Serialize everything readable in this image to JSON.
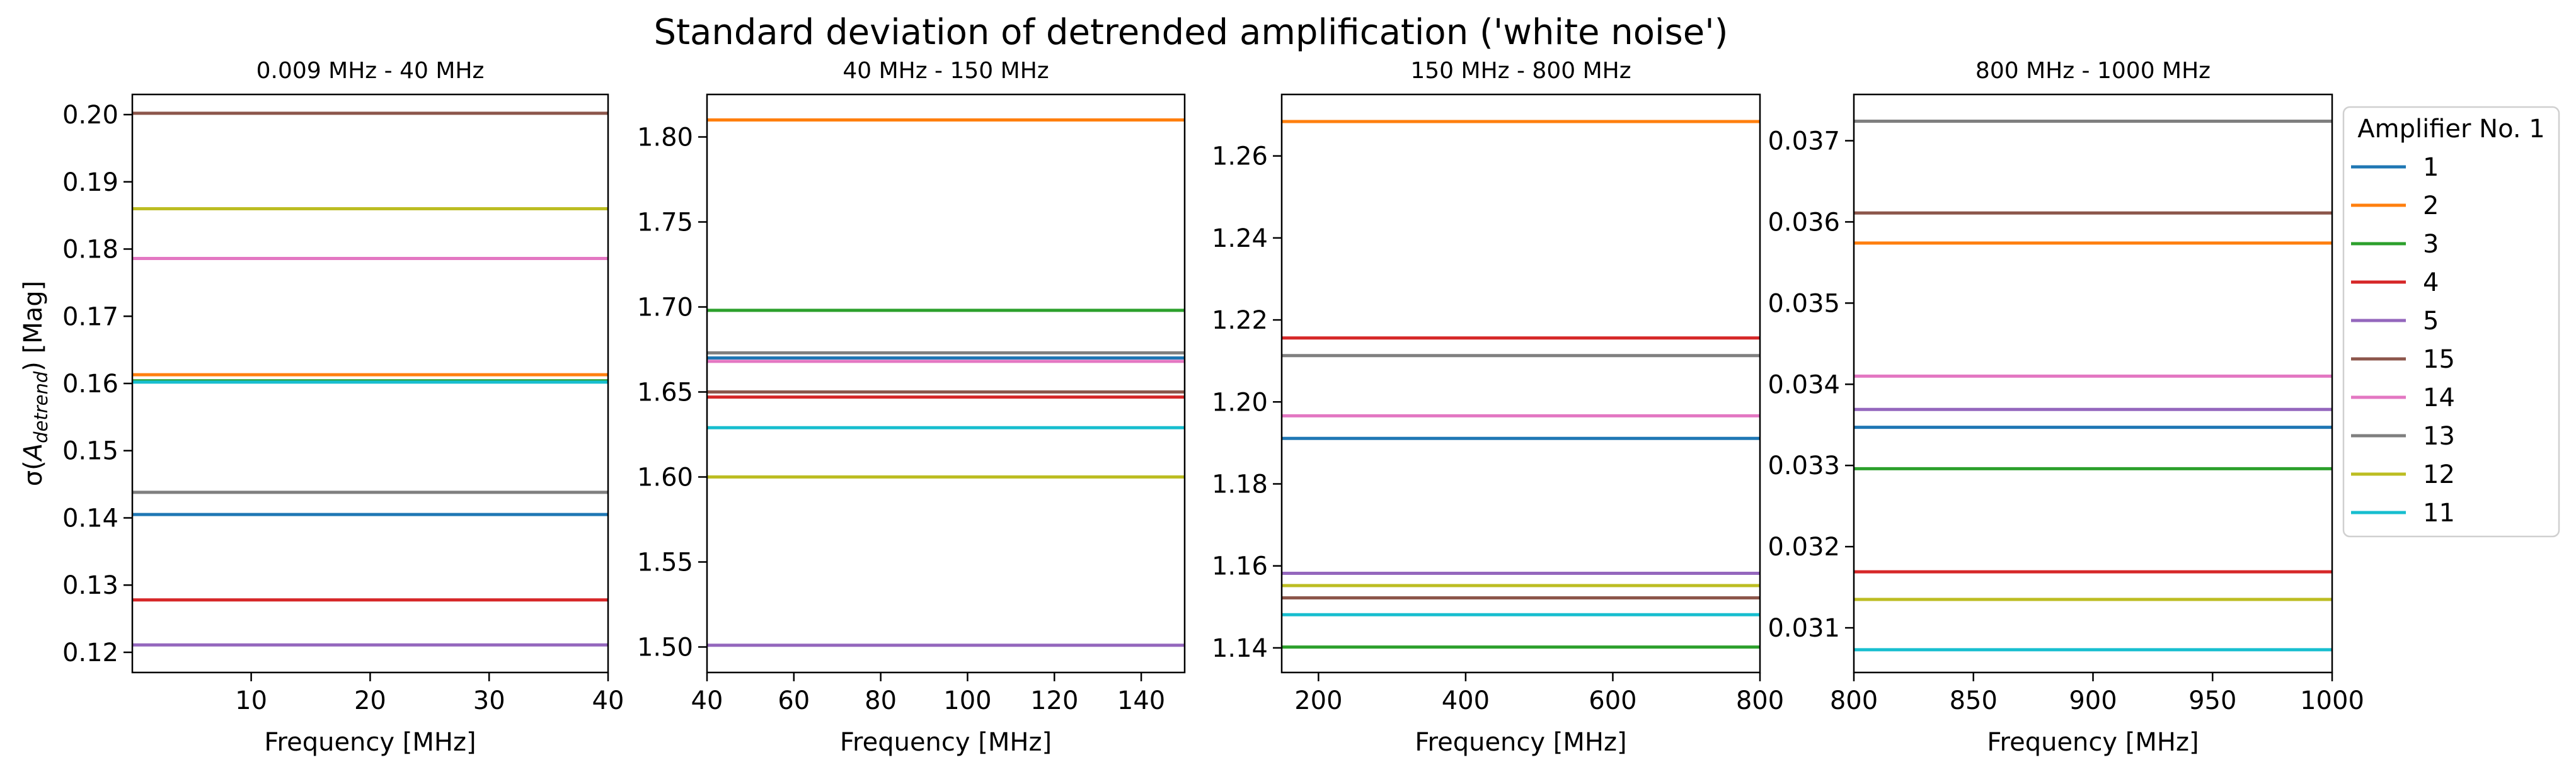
{
  "figure": {
    "title": "Standard deviation of detrended amplification ('white noise')",
    "ylabel": "σ(A_detrend) [Mag]"
  },
  "legend": {
    "title": "Amplifier No. 1",
    "placement": "right",
    "entries": [
      {
        "label": "1",
        "color": "#1f77b4"
      },
      {
        "label": "2",
        "color": "#ff7f0e"
      },
      {
        "label": "3",
        "color": "#2ca02c"
      },
      {
        "label": "4",
        "color": "#d62728"
      },
      {
        "label": "5",
        "color": "#9467bd"
      },
      {
        "label": "15",
        "color": "#8c564b"
      },
      {
        "label": "14",
        "color": "#e377c2"
      },
      {
        "label": "13",
        "color": "#7f7f7f"
      },
      {
        "label": "12",
        "color": "#bcbd22"
      },
      {
        "label": "11",
        "color": "#17becf"
      }
    ]
  },
  "chart_data": [
    {
      "type": "line",
      "title": "0.009 MHz - 40 MHz",
      "xlabel": "Frequency [MHz]",
      "ylabel": "σ(A_detrend) [Mag]",
      "xlim": [
        0.009,
        40
      ],
      "ylim": [
        0.117,
        0.203
      ],
      "xticks": [
        "10",
        "20",
        "30",
        "40"
      ],
      "xtick_values": [
        10,
        20,
        30,
        40
      ],
      "yticks": [
        "0.12",
        "0.13",
        "0.14",
        "0.15",
        "0.16",
        "0.17",
        "0.18",
        "0.19",
        "0.20"
      ],
      "ytick_values": [
        0.12,
        0.13,
        0.14,
        0.15,
        0.16,
        0.17,
        0.18,
        0.19,
        0.2
      ],
      "series": [
        {
          "name": "1",
          "values": [
            0.1405
          ]
        },
        {
          "name": "2",
          "values": [
            0.1613
          ]
        },
        {
          "name": "3",
          "values": [
            0.1604
          ]
        },
        {
          "name": "4",
          "values": [
            0.1278
          ]
        },
        {
          "name": "5",
          "values": [
            0.1211
          ]
        },
        {
          "name": "15",
          "values": [
            0.2002
          ]
        },
        {
          "name": "14",
          "values": [
            0.1786
          ]
        },
        {
          "name": "13",
          "values": [
            0.1438
          ]
        },
        {
          "name": "12",
          "values": [
            0.186
          ]
        },
        {
          "name": "11",
          "values": [
            0.1602
          ]
        }
      ]
    },
    {
      "type": "line",
      "title": "40 MHz - 150 MHz",
      "xlabel": "Frequency [MHz]",
      "xlim": [
        40,
        150
      ],
      "ylim": [
        1.485,
        1.825
      ],
      "xticks": [
        "40",
        "60",
        "80",
        "100",
        "120",
        "140"
      ],
      "xtick_values": [
        40,
        60,
        80,
        100,
        120,
        140
      ],
      "yticks": [
        "1.50",
        "1.55",
        "1.60",
        "1.65",
        "1.70",
        "1.75",
        "1.80"
      ],
      "ytick_values": [
        1.5,
        1.55,
        1.6,
        1.65,
        1.7,
        1.75,
        1.8
      ],
      "series": [
        {
          "name": "1",
          "values": [
            1.67
          ]
        },
        {
          "name": "2",
          "values": [
            1.81
          ]
        },
        {
          "name": "3",
          "values": [
            1.698
          ]
        },
        {
          "name": "4",
          "values": [
            1.647
          ]
        },
        {
          "name": "5",
          "values": [
            1.501
          ]
        },
        {
          "name": "15",
          "values": [
            1.65
          ]
        },
        {
          "name": "14",
          "values": [
            1.668
          ]
        },
        {
          "name": "13",
          "values": [
            1.673
          ]
        },
        {
          "name": "12",
          "values": [
            1.6
          ]
        },
        {
          "name": "11",
          "values": [
            1.629
          ]
        }
      ]
    },
    {
      "type": "line",
      "title": "150 MHz - 800 MHz",
      "xlabel": "Frequency [MHz]",
      "xlim": [
        150,
        800
      ],
      "ylim": [
        1.134,
        1.275
      ],
      "xticks": [
        "200",
        "400",
        "600",
        "800"
      ],
      "xtick_values": [
        200,
        400,
        600,
        800
      ],
      "yticks": [
        "1.14",
        "1.16",
        "1.18",
        "1.20",
        "1.22",
        "1.24",
        "1.26"
      ],
      "ytick_values": [
        1.14,
        1.16,
        1.18,
        1.2,
        1.22,
        1.24,
        1.26
      ],
      "series": [
        {
          "name": "1",
          "values": [
            1.1911
          ]
        },
        {
          "name": "2",
          "values": [
            1.2684
          ]
        },
        {
          "name": "3",
          "values": [
            1.1402
          ]
        },
        {
          "name": "4",
          "values": [
            1.2156
          ]
        },
        {
          "name": "5",
          "values": [
            1.1582
          ]
        },
        {
          "name": "15",
          "values": [
            1.1522
          ]
        },
        {
          "name": "14",
          "values": [
            1.1966
          ]
        },
        {
          "name": "13",
          "values": [
            1.2113
          ]
        },
        {
          "name": "12",
          "values": [
            1.1552
          ]
        },
        {
          "name": "11",
          "values": [
            1.1481
          ]
        }
      ]
    },
    {
      "type": "line",
      "title": "800 MHz - 1000 MHz",
      "xlabel": "Frequency [MHz]",
      "xlim": [
        800,
        1000
      ],
      "ylim": [
        0.03045,
        0.03757
      ],
      "xticks": [
        "800",
        "850",
        "900",
        "950",
        "1000"
      ],
      "xtick_values": [
        800,
        850,
        900,
        950,
        1000
      ],
      "yticks": [
        "0.031",
        "0.032",
        "0.033",
        "0.034",
        "0.035",
        "0.036",
        "0.037"
      ],
      "ytick_values": [
        0.031,
        0.032,
        0.033,
        0.034,
        0.035,
        0.036,
        0.037
      ],
      "series": [
        {
          "name": "1",
          "values": [
            0.03347
          ]
        },
        {
          "name": "2",
          "values": [
            0.03574
          ]
        },
        {
          "name": "3",
          "values": [
            0.03296
          ]
        },
        {
          "name": "4",
          "values": [
            0.03169
          ]
        },
        {
          "name": "5",
          "values": [
            0.03369
          ]
        },
        {
          "name": "15",
          "values": [
            0.03611
          ]
        },
        {
          "name": "14",
          "values": [
            0.0341
          ]
        },
        {
          "name": "13",
          "values": [
            0.03724
          ]
        },
        {
          "name": "12",
          "values": [
            0.03135
          ]
        },
        {
          "name": "11",
          "values": [
            0.03073
          ]
        }
      ]
    }
  ]
}
